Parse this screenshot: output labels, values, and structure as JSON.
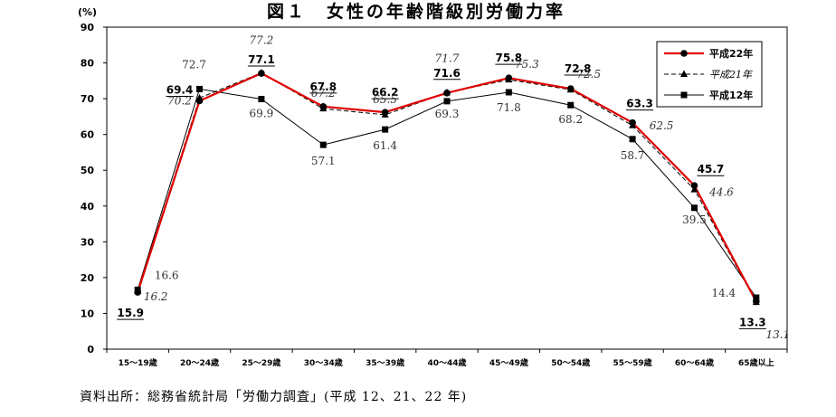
{
  "source_note": "資料出所：総務省統計局「労働力調査」(平成 12、21、22 年)",
  "chart_data": {
    "type": "line",
    "title": "図１　女性の年齢階級別労働力率",
    "y_unit": "(%)",
    "ylim": [
      0,
      90
    ],
    "yticks": [
      0,
      10,
      20,
      30,
      40,
      50,
      60,
      70,
      80,
      90
    ],
    "categories": [
      "15～19歳",
      "20～24歳",
      "25～29歳",
      "30～34歳",
      "35～39歳",
      "40～44歳",
      "45～49歳",
      "50～54歳",
      "55～59歳",
      "60～64歳",
      "65歳以上"
    ],
    "grid": false,
    "legend_position": "top-right",
    "series": [
      {
        "name": "平成22年",
        "values": [
          15.9,
          69.4,
          77.1,
          67.8,
          66.2,
          71.6,
          75.8,
          72.8,
          63.3,
          45.7,
          13.3
        ],
        "color": "#e00000",
        "marker": "circle",
        "dash": "solid"
      },
      {
        "name": "平成21年",
        "values": [
          16.2,
          70.2,
          77.2,
          67.2,
          65.5,
          71.7,
          75.3,
          72.5,
          62.5,
          44.6,
          13.1
        ],
        "color": "#000000",
        "marker": "triangle",
        "dash": "dashed"
      },
      {
        "name": "平成12年",
        "values": [
          16.6,
          72.7,
          69.9,
          57.1,
          61.4,
          69.3,
          71.8,
          68.2,
          58.7,
          39.5,
          14.4
        ],
        "color": "#000000",
        "marker": "square",
        "dash": "solid"
      }
    ]
  }
}
